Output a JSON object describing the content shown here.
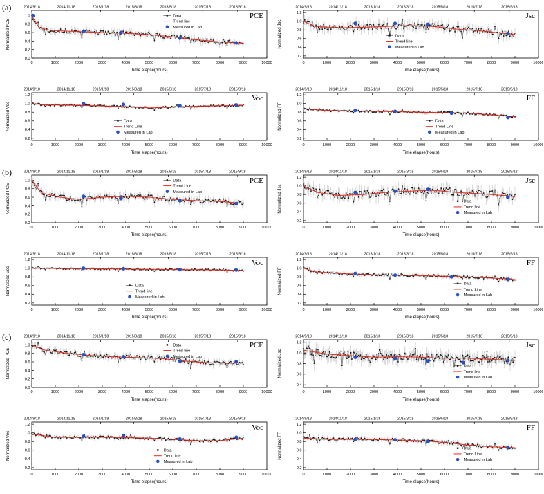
{
  "figure": {
    "group_labels": [
      "(a)",
      "(b)",
      "(c)"
    ]
  },
  "axes": {
    "top_dates": [
      "2014/9/18",
      "2014/11/18",
      "2015/1/18",
      "2015/3/18",
      "2015/5/18",
      "2015/7/18",
      "2015/9/18"
    ],
    "top_tick_hours": [
      0,
      1464,
      2928,
      4344,
      5808,
      7272,
      8760
    ],
    "bottom_ticks": [
      0,
      1000,
      2000,
      3000,
      4000,
      5000,
      6000,
      7000,
      8000,
      9000,
      10000
    ],
    "xlabel": "Time elapse(hours)"
  },
  "chart_data": [
    {
      "id": "a-pce",
      "group": "(a)",
      "type": "scatter",
      "title": "PCE",
      "ylabel": "Normalized PCE",
      "xlabel": "Time elapse(hours)",
      "xlim": [
        0,
        10000
      ],
      "ylim": [
        0.0,
        1.12
      ],
      "yticks": [
        0.0,
        0.2,
        0.4,
        0.6,
        0.8,
        1.0
      ],
      "legend": {
        "labels": [
          "Data",
          "Trend line",
          "Measured in Lab"
        ],
        "x": 0.56,
        "y": 0.02
      },
      "trend": [
        [
          0,
          1.0
        ],
        [
          300,
          0.72
        ],
        [
          800,
          0.65
        ],
        [
          2000,
          0.62
        ],
        [
          3000,
          0.6
        ],
        [
          4000,
          0.58
        ],
        [
          5000,
          0.55
        ],
        [
          6000,
          0.5
        ],
        [
          7000,
          0.43
        ],
        [
          8000,
          0.38
        ],
        [
          9000,
          0.35
        ]
      ],
      "lab": [
        [
          50,
          1.0
        ],
        [
          2200,
          0.63
        ],
        [
          3800,
          0.6
        ],
        [
          6300,
          0.47
        ],
        [
          8700,
          0.36
        ]
      ],
      "noise": 0.05,
      "n_points": 170,
      "data_xmax": 9000,
      "colors": {
        "data": "#1a1a1a",
        "trend": "#e02a1e",
        "lab": "#2a52be",
        "error": "#b4b4b4"
      }
    },
    {
      "id": "a-jsc",
      "group": "(a)",
      "type": "scatter",
      "title": "Jsc",
      "ylabel": "Normalized Jsc",
      "xlabel": "Time elapse(hours)",
      "xlim": [
        0,
        10000
      ],
      "ylim": [
        0.15,
        1.25
      ],
      "yticks": [
        0.2,
        0.4,
        0.6,
        0.8,
        1.0,
        1.2
      ],
      "legend": {
        "labels": [
          "Data",
          "Trend line",
          "Measured in Lab"
        ],
        "x": 0.35,
        "y": 0.44
      },
      "trend": [
        [
          0,
          1.0
        ],
        [
          500,
          0.88
        ],
        [
          1500,
          0.85
        ],
        [
          2500,
          0.86
        ],
        [
          3500,
          0.88
        ],
        [
          4500,
          0.9
        ],
        [
          5500,
          0.88
        ],
        [
          6500,
          0.82
        ],
        [
          7500,
          0.78
        ],
        [
          8500,
          0.72
        ],
        [
          9000,
          0.7
        ]
      ],
      "lab": [
        [
          2200,
          0.95
        ],
        [
          3900,
          0.95
        ],
        [
          5300,
          0.93
        ],
        [
          8700,
          0.72
        ]
      ],
      "noise": 0.07,
      "n_points": 170,
      "data_xmax": 9000,
      "colors": {
        "data": "#1a1a1a",
        "trend": "#e02a1e",
        "lab": "#2a52be",
        "error": "#b4b4b4"
      }
    },
    {
      "id": "a-voc",
      "group": "(a)",
      "type": "scatter",
      "title": "Voc",
      "ylabel": "Normalized Voc",
      "xlabel": "Time elapse(hours)",
      "xlim": [
        0,
        10000
      ],
      "ylim": [
        0.15,
        1.25
      ],
      "yticks": [
        0.2,
        0.4,
        0.6,
        0.8,
        1.0,
        1.2
      ],
      "legend": {
        "labels": [
          "Data",
          "Trend Line",
          "Measured in Lab"
        ],
        "x": 0.35,
        "y": 0.5
      },
      "trend": [
        [
          0,
          1.0
        ],
        [
          500,
          0.97
        ],
        [
          2000,
          0.96
        ],
        [
          4000,
          0.93
        ],
        [
          5000,
          0.9
        ],
        [
          6000,
          0.92
        ],
        [
          7000,
          0.94
        ],
        [
          8000,
          0.95
        ],
        [
          9000,
          0.96
        ]
      ],
      "lab": [
        [
          2200,
          1.0
        ],
        [
          3900,
          0.98
        ],
        [
          6300,
          0.95
        ],
        [
          8700,
          0.97
        ]
      ],
      "noise": 0.02,
      "n_points": 170,
      "data_xmax": 9000,
      "colors": {
        "data": "#1a1a1a",
        "trend": "#e02a1e",
        "lab": "#2a52be",
        "error": "#b4b4b4"
      }
    },
    {
      "id": "a-ff",
      "group": "(a)",
      "type": "scatter",
      "title": "FF",
      "ylabel": "Normalized FF",
      "xlabel": "Time elapse(hours)",
      "xlim": [
        0,
        10000
      ],
      "ylim": [
        0.15,
        1.25
      ],
      "yticks": [
        0.2,
        0.4,
        0.6,
        0.8,
        1.0,
        1.2
      ],
      "legend": {
        "labels": [
          "Data",
          "Trend Line",
          "Measured in Lab"
        ],
        "x": 0.52,
        "y": 0.5
      },
      "trend": [
        [
          0,
          0.88
        ],
        [
          1000,
          0.84
        ],
        [
          3000,
          0.82
        ],
        [
          5000,
          0.8
        ],
        [
          7000,
          0.78
        ],
        [
          8000,
          0.74
        ],
        [
          9000,
          0.7
        ]
      ],
      "lab": [
        [
          2200,
          0.84
        ],
        [
          3900,
          0.82
        ],
        [
          6300,
          0.78
        ],
        [
          8700,
          0.68
        ]
      ],
      "noise": 0.022,
      "n_points": 170,
      "data_xmax": 9000,
      "colors": {
        "data": "#1a1a1a",
        "trend": "#e02a1e",
        "lab": "#2a52be",
        "error": "#b4b4b4"
      }
    },
    {
      "id": "b-pce",
      "group": "(b)",
      "type": "scatter",
      "title": "PCE",
      "ylabel": "Normalized PCE",
      "xlabel": "Time elapse(hours)",
      "xlim": [
        0,
        10000
      ],
      "ylim": [
        0.0,
        1.12
      ],
      "yticks": [
        0.0,
        0.2,
        0.4,
        0.6,
        0.8,
        1.0
      ],
      "legend": {
        "labels": [
          "Data",
          "Trend Line",
          "Measured in Lab"
        ],
        "x": 0.56,
        "y": 0.02
      },
      "trend": [
        [
          0,
          1.0
        ],
        [
          400,
          0.7
        ],
        [
          1200,
          0.6
        ],
        [
          2000,
          0.55
        ],
        [
          3000,
          0.6
        ],
        [
          4000,
          0.62
        ],
        [
          5000,
          0.6
        ],
        [
          6000,
          0.55
        ],
        [
          7000,
          0.52
        ],
        [
          8000,
          0.5
        ],
        [
          9000,
          0.46
        ]
      ],
      "lab": [
        [
          2200,
          0.62
        ],
        [
          3800,
          0.57
        ],
        [
          6300,
          0.52
        ],
        [
          8700,
          0.45
        ]
      ],
      "noise": 0.055,
      "n_points": 170,
      "data_xmax": 9000,
      "colors": {
        "data": "#1a1a1a",
        "trend": "#e02a1e",
        "lab": "#2a52be",
        "error": "#b4b4b4"
      }
    },
    {
      "id": "b-jsc",
      "group": "(b)",
      "type": "scatter",
      "title": "Jsc",
      "ylabel": "Normalized Jsc",
      "xlabel": "Time elapse(hours)",
      "xlim": [
        0,
        10000
      ],
      "ylim": [
        0.15,
        1.25
      ],
      "yticks": [
        0.2,
        0.4,
        0.6,
        0.8,
        1.0,
        1.2
      ],
      "legend": {
        "labels": [
          "Data",
          "Trend line",
          "Measured in Lab"
        ],
        "x": 0.64,
        "y": 0.46
      },
      "trend": [
        [
          0,
          1.0
        ],
        [
          600,
          0.85
        ],
        [
          1500,
          0.78
        ],
        [
          2500,
          0.8
        ],
        [
          3500,
          0.85
        ],
        [
          4500,
          0.88
        ],
        [
          5500,
          0.9
        ],
        [
          6500,
          0.85
        ],
        [
          7500,
          0.82
        ],
        [
          8500,
          0.78
        ],
        [
          9000,
          0.75
        ]
      ],
      "lab": [
        [
          2200,
          0.85
        ],
        [
          3900,
          0.88
        ],
        [
          5300,
          0.92
        ],
        [
          8700,
          0.74
        ]
      ],
      "noise": 0.085,
      "n_points": 170,
      "data_xmax": 9000,
      "colors": {
        "data": "#1a1a1a",
        "trend": "#e02a1e",
        "lab": "#2a52be",
        "error": "#b4b4b4"
      }
    },
    {
      "id": "b-voc",
      "group": "(b)",
      "type": "scatter",
      "title": "Voc",
      "ylabel": "Normalized Voc",
      "xlabel": "Time elapse(hours)",
      "xlim": [
        0,
        10000
      ],
      "ylim": [
        0.15,
        1.25
      ],
      "yticks": [
        0.2,
        0.4,
        0.6,
        0.8,
        1.0,
        1.2
      ],
      "legend": {
        "labels": [
          "Data",
          "Trend line",
          "Measured in Lab"
        ],
        "x": 0.4,
        "y": 0.5
      },
      "trend": [
        [
          0,
          1.0
        ],
        [
          2000,
          0.99
        ],
        [
          4000,
          0.98
        ],
        [
          6000,
          0.97
        ],
        [
          8000,
          0.96
        ],
        [
          9000,
          0.95
        ]
      ],
      "lab": [
        [
          2200,
          1.0
        ],
        [
          3900,
          0.99
        ],
        [
          6300,
          0.97
        ],
        [
          8700,
          0.96
        ]
      ],
      "noise": 0.018,
      "n_points": 170,
      "data_xmax": 9000,
      "colors": {
        "data": "#1a1a1a",
        "trend": "#e02a1e",
        "lab": "#2a52be",
        "error": "#b4b4b4"
      }
    },
    {
      "id": "b-ff",
      "group": "(b)",
      "type": "scatter",
      "title": "FF",
      "ylabel": "Normalized FF",
      "xlabel": "Time elapse(hours)",
      "xlim": [
        0,
        10000
      ],
      "ylim": [
        0.15,
        1.25
      ],
      "yticks": [
        0.2,
        0.4,
        0.6,
        0.8,
        1.0,
        1.2
      ],
      "legend": {
        "labels": [
          "Data",
          "Trend Line",
          "Measured in Lab"
        ],
        "x": 0.64,
        "y": 0.46
      },
      "trend": [
        [
          0,
          1.0
        ],
        [
          500,
          0.92
        ],
        [
          1500,
          0.88
        ],
        [
          3000,
          0.85
        ],
        [
          5000,
          0.83
        ],
        [
          7000,
          0.8
        ],
        [
          8500,
          0.76
        ],
        [
          9000,
          0.74
        ]
      ],
      "lab": [
        [
          2200,
          0.88
        ],
        [
          3900,
          0.84
        ],
        [
          6300,
          0.8
        ],
        [
          8700,
          0.74
        ]
      ],
      "noise": 0.03,
      "n_points": 170,
      "data_xmax": 9000,
      "colors": {
        "data": "#1a1a1a",
        "trend": "#e02a1e",
        "lab": "#2a52be",
        "error": "#b4b4b4"
      }
    },
    {
      "id": "c-pce",
      "group": "(c)",
      "type": "scatter",
      "title": "PCE",
      "ylabel": "Normalized PCE",
      "xlabel": "Time elapse(hours)",
      "xlim": [
        0,
        10000
      ],
      "ylim": [
        0.0,
        1.12
      ],
      "yticks": [
        0.0,
        0.2,
        0.4,
        0.6,
        0.8,
        1.0
      ],
      "legend": {
        "labels": [
          "Data",
          "Trend line",
          "Measured in Lab"
        ],
        "x": 0.56,
        "y": 0.02
      },
      "trend": [
        [
          0,
          1.0
        ],
        [
          500,
          0.88
        ],
        [
          1500,
          0.8
        ],
        [
          2500,
          0.75
        ],
        [
          3500,
          0.72
        ],
        [
          4500,
          0.7
        ],
        [
          5500,
          0.68
        ],
        [
          6500,
          0.62
        ],
        [
          7500,
          0.58
        ],
        [
          8500,
          0.57
        ],
        [
          9000,
          0.58
        ]
      ],
      "lab": [
        [
          2200,
          0.77
        ],
        [
          3900,
          0.72
        ],
        [
          6300,
          0.62
        ],
        [
          8700,
          0.6
        ]
      ],
      "noise": 0.05,
      "n_points": 170,
      "data_xmax": 9000,
      "colors": {
        "data": "#1a1a1a",
        "trend": "#e02a1e",
        "lab": "#2a52be",
        "error": "#b4b4b4"
      }
    },
    {
      "id": "c-jsc",
      "group": "(c)",
      "type": "scatter",
      "title": "Jsc",
      "ylabel": "Normalized Jsc",
      "xlabel": "Time elapse(hours)",
      "xlim": [
        0,
        10000
      ],
      "ylim": [
        0.35,
        1.25
      ],
      "yticks": [
        0.4,
        0.6,
        0.8,
        1.0,
        1.2
      ],
      "legend": {
        "labels": [
          "Data",
          "Trend line",
          "Measured in Lab"
        ],
        "x": 0.64,
        "y": 0.46
      },
      "trend": [
        [
          0,
          1.05
        ],
        [
          1000,
          0.98
        ],
        [
          2000,
          0.95
        ],
        [
          3000,
          0.92
        ],
        [
          4000,
          0.93
        ],
        [
          5000,
          0.92
        ],
        [
          6000,
          0.9
        ],
        [
          7000,
          0.9
        ],
        [
          8000,
          0.88
        ],
        [
          9000,
          0.86
        ]
      ],
      "lab": [
        [
          2200,
          0.92
        ],
        [
          3900,
          0.9
        ],
        [
          5300,
          0.85
        ],
        [
          6800,
          0.82
        ],
        [
          8700,
          0.86
        ]
      ],
      "noise": 0.07,
      "n_points": 220,
      "data_xmax": 9000,
      "colors": {
        "data": "#1a1a1a",
        "trend": "#e02a1e",
        "lab": "#2a52be",
        "error": "#b4b4b4"
      }
    },
    {
      "id": "c-voc",
      "group": "(c)",
      "type": "scatter",
      "title": "Voc",
      "ylabel": "Normalized Voc",
      "xlabel": "Time elapse(hours)",
      "xlim": [
        0,
        10000
      ],
      "ylim": [
        0.15,
        1.25
      ],
      "yticks": [
        0.2,
        0.4,
        0.6,
        0.8,
        1.0,
        1.2
      ],
      "legend": {
        "labels": [
          "Data",
          "Trend line",
          "Measured in Lab"
        ],
        "x": 0.52,
        "y": 0.5
      },
      "trend": [
        [
          0,
          0.97
        ],
        [
          1000,
          0.9
        ],
        [
          3000,
          0.9
        ],
        [
          5000,
          0.88
        ],
        [
          6000,
          0.85
        ],
        [
          7000,
          0.82
        ],
        [
          8000,
          0.82
        ],
        [
          9000,
          0.88
        ]
      ],
      "lab": [
        [
          2200,
          0.92
        ],
        [
          3900,
          0.94
        ],
        [
          6300,
          0.86
        ],
        [
          8700,
          0.9
        ]
      ],
      "noise": 0.03,
      "n_points": 170,
      "data_xmax": 9000,
      "colors": {
        "data": "#1a1a1a",
        "trend": "#e02a1e",
        "lab": "#2a52be",
        "error": "#b4b4b4"
      }
    },
    {
      "id": "c-ff",
      "group": "(c)",
      "type": "scatter",
      "title": "FF",
      "ylabel": "Normalized FF",
      "xlabel": "Time elapse(hours)",
      "xlim": [
        0,
        10000
      ],
      "ylim": [
        0.15,
        1.25
      ],
      "yticks": [
        0.2,
        0.4,
        0.6,
        0.8,
        1.0,
        1.2
      ],
      "legend": {
        "labels": [
          "Data",
          "Trend Line",
          "Measured in Lab"
        ],
        "x": 0.64,
        "y": 0.46
      },
      "trend": [
        [
          0,
          0.88
        ],
        [
          1000,
          0.85
        ],
        [
          3000,
          0.85
        ],
        [
          5000,
          0.82
        ],
        [
          6000,
          0.78
        ],
        [
          7000,
          0.72
        ],
        [
          8000,
          0.68
        ],
        [
          9000,
          0.66
        ]
      ],
      "lab": [
        [
          2200,
          0.85
        ],
        [
          3900,
          0.84
        ],
        [
          5300,
          0.8
        ],
        [
          8700,
          0.66
        ]
      ],
      "noise": 0.035,
      "n_points": 170,
      "data_xmax": 9000,
      "colors": {
        "data": "#1a1a1a",
        "trend": "#e02a1e",
        "lab": "#2a52be",
        "error": "#b4b4b4"
      }
    }
  ]
}
